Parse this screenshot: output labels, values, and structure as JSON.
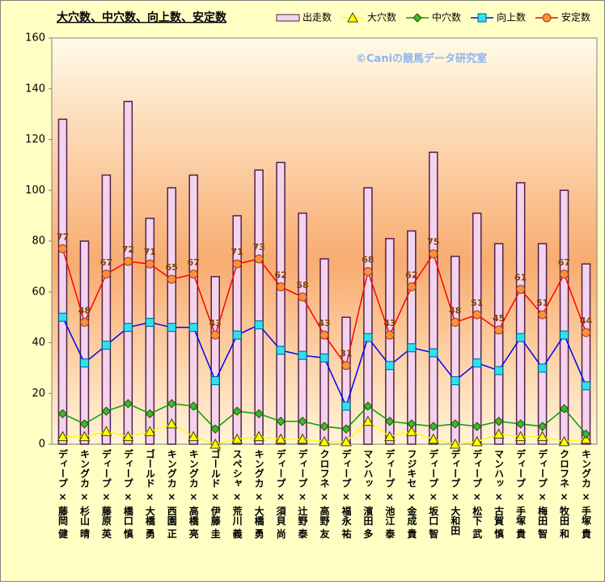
{
  "chart_data": {
    "type": "bar-line",
    "title": "大穴数、中穴数、向上数、安定数",
    "watermark": "©Caniの競馬データ研究室",
    "categories": [
      "ディープ × 藤岡 健",
      "キングカ × 杉山 晴",
      "ディープ × 藤原 英",
      "ディープ × 橋口 慎",
      "ゴールド × 大橋 勇",
      "キングカ × 西園 正",
      "キングカ × 高橋 亮",
      "ゴールド × 伊藤 圭",
      "スペシャ × 荒川 義",
      "キングカ × 大橋 勇",
      "ディープ × 須貝 尚",
      "ディープ × 辻野 泰",
      "クロフネ × 高野 友",
      "ディープ × 福永 祐",
      "マンハッ × 濱田 多",
      "ディープ × 池江 泰",
      "フジキセ × 金成 貴",
      "ディープ × 坂口 智",
      "ディープ × 大和田",
      "ディープ × 松下 武",
      "マンハッ × 古賀 慎",
      "ディープ × 手塚 貴",
      "ディープ × 梅田 智",
      "クロフネ × 牧田 和",
      "キングカ × 手塚 貴"
    ],
    "series": [
      {
        "name": "出走数",
        "kind": "bar",
        "color": "#f4d4ec",
        "values": [
          128,
          80,
          106,
          135,
          89,
          101,
          106,
          66,
          90,
          108,
          111,
          91,
          73,
          50,
          101,
          81,
          84,
          115,
          74,
          91,
          79,
          103,
          79,
          100,
          71
        ]
      },
      {
        "name": "大穴数",
        "kind": "line",
        "marker": "triangle",
        "color": "#ffff00",
        "values": [
          3,
          3,
          5,
          3,
          5,
          8,
          3,
          0,
          2,
          3,
          2,
          2,
          1,
          1,
          9,
          3,
          5,
          2,
          0,
          1,
          4,
          3,
          3,
          1,
          2
        ]
      },
      {
        "name": "中穴数",
        "kind": "line",
        "marker": "diamond",
        "color": "#00a000",
        "values": [
          12,
          8,
          13,
          16,
          12,
          16,
          15,
          6,
          13,
          12,
          9,
          9,
          7,
          6,
          15,
          9,
          8,
          7,
          8,
          7,
          9,
          8,
          7,
          14,
          4
        ]
      },
      {
        "name": "向上数",
        "kind": "line",
        "marker": "square",
        "color": "#0000ff",
        "values": [
          50,
          32,
          39,
          46,
          48,
          46,
          46,
          25,
          43,
          47,
          37,
          35,
          34,
          15,
          42,
          31,
          38,
          36,
          25,
          32,
          29,
          42,
          30,
          43,
          23
        ]
      },
      {
        "name": "安定数",
        "kind": "line",
        "marker": "circle",
        "color": "#ff0000",
        "values": [
          77,
          48,
          67,
          72,
          71,
          65,
          67,
          43,
          71,
          73,
          62,
          58,
          43,
          31,
          68,
          43,
          62,
          75,
          48,
          51,
          45,
          61,
          51,
          67,
          44
        ],
        "show_values": true
      }
    ],
    "ylim": [
      0,
      160
    ],
    "yticks": [
      0,
      20,
      40,
      60,
      80,
      100,
      120,
      140,
      160
    ],
    "legend": "top-right"
  }
}
